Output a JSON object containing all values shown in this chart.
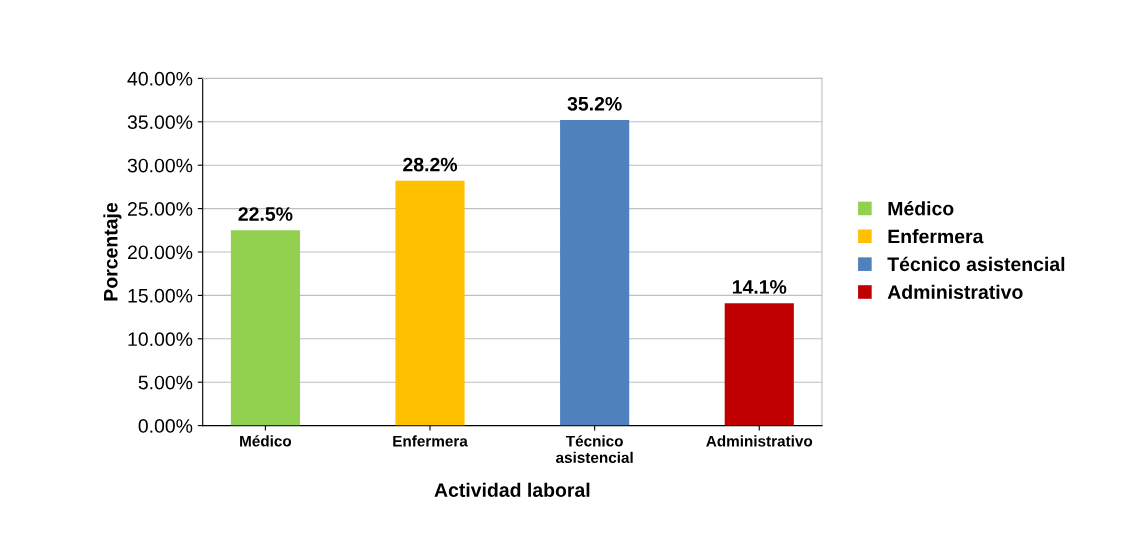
{
  "chart_data": {
    "type": "bar",
    "xlabel": "Actividad laboral",
    "ylabel": "Porcentaje",
    "categories": [
      "Médico",
      "Enfermera",
      "Técnico\nasistencial",
      "Administrativo"
    ],
    "series": [
      {
        "name": "Médico",
        "color": "#92d050",
        "values": [
          22.5,
          null,
          null,
          null
        ],
        "value_labels": [
          "22.5%",
          null,
          null,
          null
        ]
      },
      {
        "name": "Enfermera",
        "color": "#ffc000",
        "values": [
          null,
          28.2,
          null,
          null
        ],
        "value_labels": [
          null,
          "28.2%",
          null,
          null
        ]
      },
      {
        "name": "Técnico asistencial",
        "color": "#4f81bd",
        "values": [
          null,
          null,
          35.2,
          null
        ],
        "value_labels": [
          null,
          null,
          "35.2%",
          null
        ]
      },
      {
        "name": "Administrativo",
        "color": "#c00000",
        "values": [
          null,
          null,
          null,
          14.1
        ],
        "value_labels": [
          null,
          null,
          null,
          "14.1%"
        ]
      }
    ],
    "ylim": [
      0,
      40
    ],
    "yticks": [
      {
        "value": 0,
        "label": "0.00%"
      },
      {
        "value": 5,
        "label": "5.00%"
      },
      {
        "value": 10,
        "label": "10.00%"
      },
      {
        "value": 15,
        "label": "15.00%"
      },
      {
        "value": 20,
        "label": "20.00%"
      },
      {
        "value": 25,
        "label": "25.00%"
      },
      {
        "value": 30,
        "label": "30.00%"
      },
      {
        "value": 35,
        "label": "35.00%"
      },
      {
        "value": 40,
        "label": "40.00%"
      }
    ],
    "grid": "y",
    "legend": "right"
  }
}
